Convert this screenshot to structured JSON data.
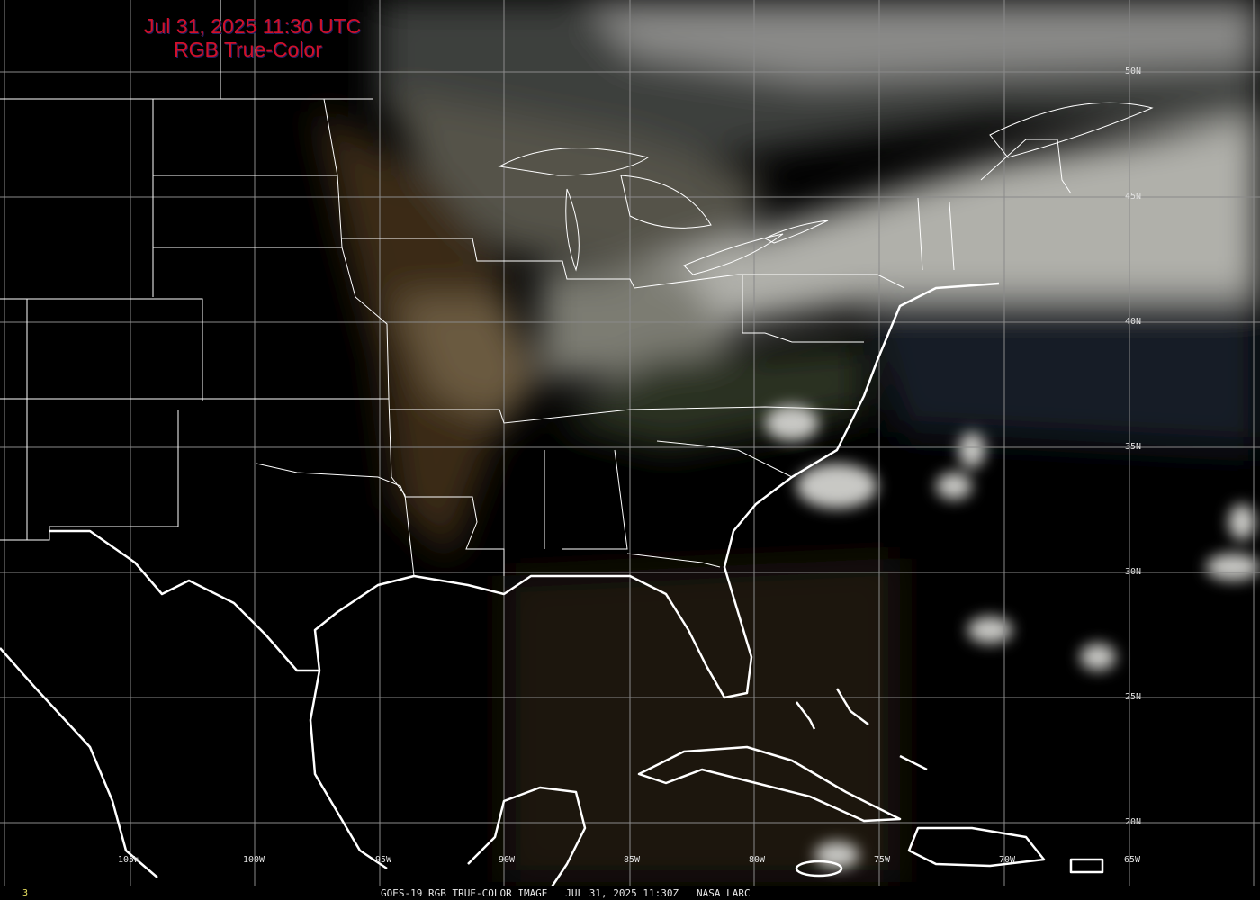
{
  "header": {
    "timestamp": "Jul 31, 2025 11:30 UTC",
    "product": "RGB True-Color"
  },
  "footer": {
    "frame_number": "3",
    "caption": "GOES-19 RGB TRUE-COLOR IMAGE   JUL 31, 2025 11:30Z   NASA LARC"
  },
  "grid": {
    "longitude_labels": [
      "105W",
      "100W",
      "95W",
      "90W",
      "85W",
      "80W",
      "75W",
      "70W",
      "65W"
    ],
    "latitude_labels": [
      "50N",
      "45N",
      "40N",
      "35N",
      "30N",
      "25N",
      "20N"
    ]
  },
  "colors": {
    "title": "#d0102a",
    "grid": "#8a8a8a",
    "boundaries": "#ffffff",
    "background": "#000000"
  }
}
